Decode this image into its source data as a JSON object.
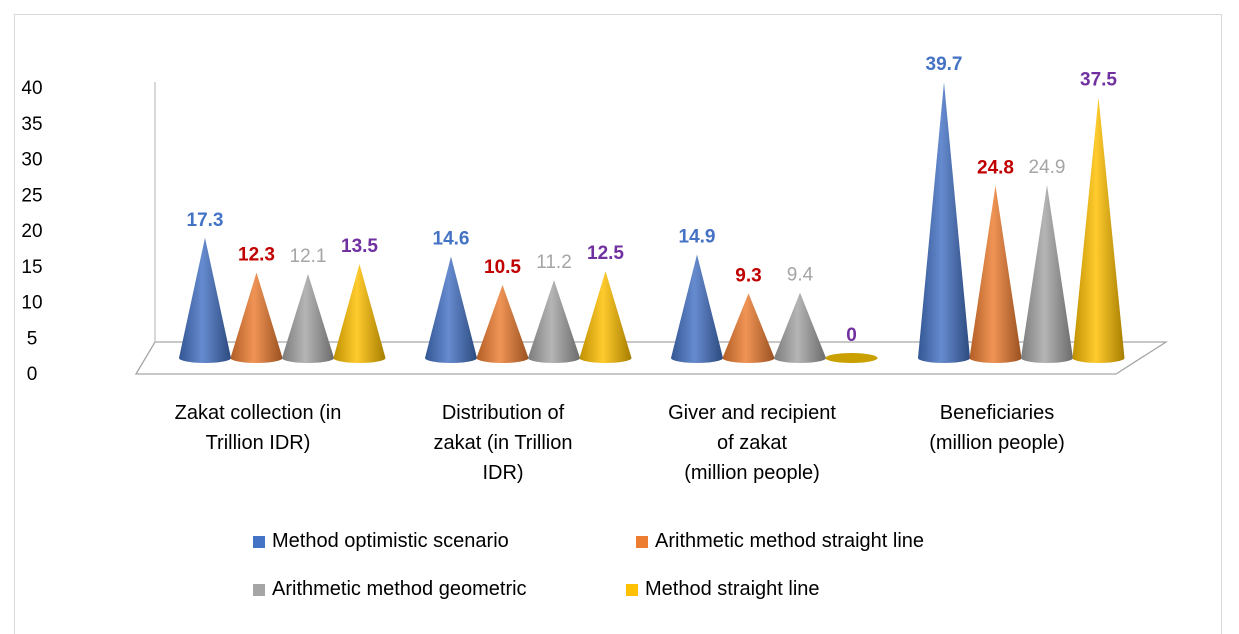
{
  "chart_data": {
    "type": "bar",
    "style": "3d-cone",
    "categories": [
      [
        "Zakat collection (in",
        "Trillion IDR)"
      ],
      [
        "Distribution of",
        "zakat (in Trillion",
        "IDR)"
      ],
      [
        "Giver and recipient",
        "of zakat",
        "(million people)"
      ],
      [
        "Beneficiaries",
        "(million people)"
      ]
    ],
    "series": [
      {
        "name": "Method optimistic scenario",
        "values": [
          17.3,
          14.6,
          14.9,
          39.7
        ],
        "color": "#4472c4",
        "label_color": "#4472c4",
        "label_bold": true
      },
      {
        "name": "Arithmetic method straight line",
        "values": [
          12.3,
          10.5,
          9.3,
          24.8
        ],
        "color": "#ed7d31",
        "label_color": "#c00000",
        "label_bold": true
      },
      {
        "name": "Arithmetic method geometric",
        "values": [
          12.1,
          11.2,
          9.4,
          24.9
        ],
        "color": "#a5a5a5",
        "label_color": "#a5a5a5",
        "label_bold": false
      },
      {
        "name": "Method straight line",
        "values": [
          13.5,
          12.5,
          0,
          37.5
        ],
        "color": "#ffc000",
        "label_color": "#7030a0",
        "label_bold": true
      }
    ],
    "data_labels": [
      [
        "17.3",
        "14.6",
        "14.9",
        "39.7"
      ],
      [
        "12.3",
        "10.5",
        "9.3",
        "24.8"
      ],
      [
        "12.1",
        "11.2",
        "9.4",
        "24.9"
      ],
      [
        "13.5",
        "12.5",
        "0",
        "37.5"
      ]
    ],
    "yticks": [
      "0",
      "5",
      "10",
      "15",
      "20",
      "25",
      "30",
      "35",
      "40"
    ],
    "ylim": [
      0,
      40
    ],
    "title": "",
    "xlabel": "",
    "ylabel": "",
    "grid": false,
    "legend_position": "bottom"
  }
}
